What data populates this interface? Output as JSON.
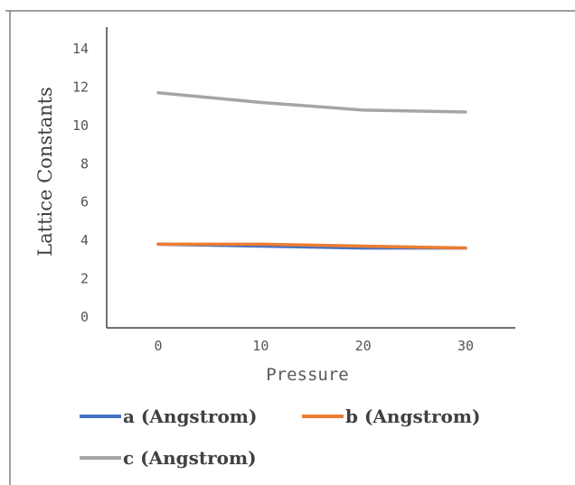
{
  "chart_data": {
    "type": "line",
    "title": "",
    "xlabel": "Pressure",
    "ylabel": "Lattice Constants",
    "x": [
      0,
      10,
      20,
      30
    ],
    "xticks": [
      "0",
      "10",
      "20",
      "30"
    ],
    "yticks": [
      "0",
      "2",
      "4",
      "6",
      "8",
      "10",
      "12",
      "14"
    ],
    "ylim": [
      0,
      14
    ],
    "xlim": [
      -5,
      35
    ],
    "grid": false,
    "legend_position": "bottom",
    "series": [
      {
        "name": "a (Angstrom)",
        "values": [
          3.8,
          3.7,
          3.6,
          3.6
        ],
        "color": "#4472C4"
      },
      {
        "name": "b (Angstrom)",
        "values": [
          3.8,
          3.8,
          3.7,
          3.6
        ],
        "color": "#ED7D31"
      },
      {
        "name": "c (Angstrom)",
        "values": [
          11.7,
          11.2,
          10.8,
          10.7
        ],
        "color": "#A5A5A5"
      }
    ]
  }
}
